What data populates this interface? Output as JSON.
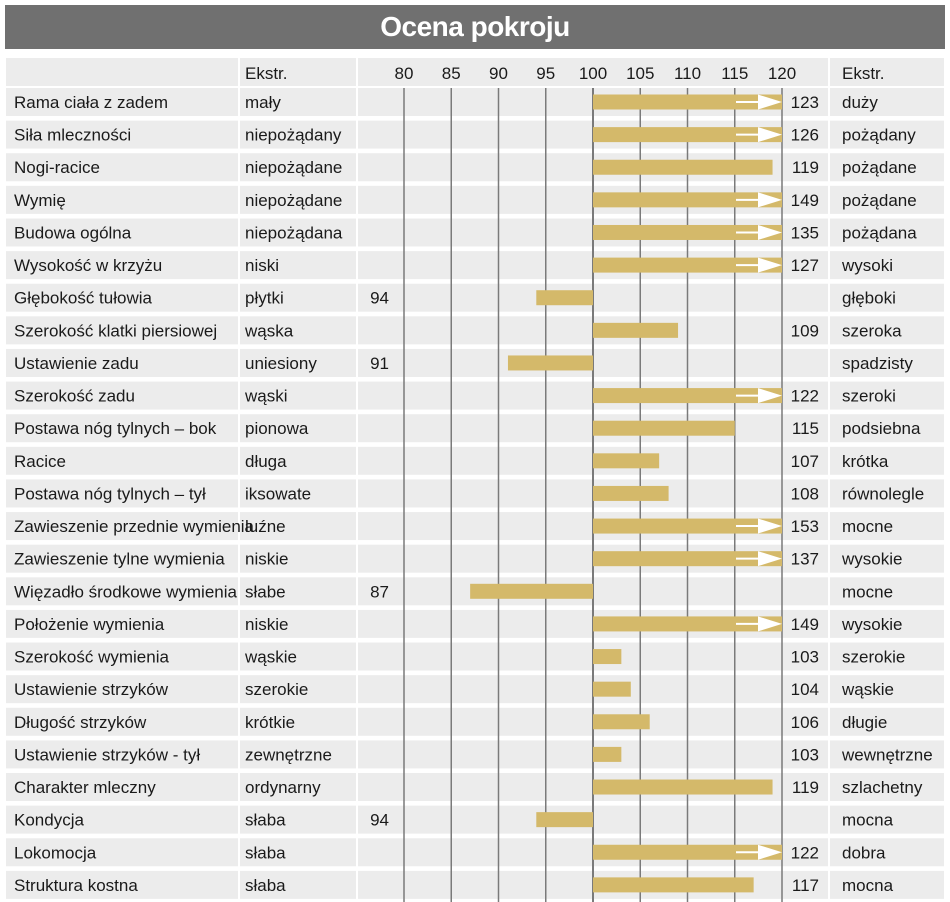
{
  "title": "Ocena pokroju",
  "colors": {
    "bar": "#d4b96a",
    "row_bg": "#ececec",
    "header_bg": "#ececec",
    "title_bg": "#707070",
    "gridline": "#7a7a7a"
  },
  "chart_data": {
    "type": "bar",
    "orientation": "horizontal",
    "baseline": 100,
    "xlim": [
      80,
      120
    ],
    "ticks": [
      80,
      85,
      90,
      95,
      100,
      105,
      110,
      115,
      120
    ],
    "grid": true,
    "header": {
      "left_extreme": "Ekstr.",
      "right_extreme": "Ekstr."
    },
    "arrow_note": "bars exceeding 120 are drawn to the 120 edge with an arrow",
    "rows": [
      {
        "trait": "Rama ciała z zadem",
        "low": "mały",
        "value": 123,
        "high": "duży"
      },
      {
        "trait": "Siła mleczności",
        "low": "niepożądany",
        "value": 126,
        "high": "pożądany"
      },
      {
        "trait": "Nogi-racice",
        "low": "niepożądane",
        "value": 119,
        "high": "pożądane"
      },
      {
        "trait": "Wymię",
        "low": "niepożądane",
        "value": 149,
        "high": "pożądane"
      },
      {
        "trait": "Budowa ogólna",
        "low": "niepożądana",
        "value": 135,
        "high": "pożądana"
      },
      {
        "trait": "Wysokość w krzyżu",
        "low": "niski",
        "value": 127,
        "high": "wysoki"
      },
      {
        "trait": "Głębokość tułowia",
        "low": "płytki",
        "value": 94,
        "high": "głęboki"
      },
      {
        "trait": "Szerokość klatki piersiowej",
        "low": "wąska",
        "value": 109,
        "high": "szeroka"
      },
      {
        "trait": "Ustawienie zadu",
        "low": "uniesiony",
        "value": 91,
        "high": "spadzisty"
      },
      {
        "trait": "Szerokość zadu",
        "low": "wąski",
        "value": 122,
        "high": "szeroki"
      },
      {
        "trait": "Postawa nóg tylnych –  bok",
        "low": "pionowa",
        "value": 115,
        "high": "podsiebna"
      },
      {
        "trait": "Racice",
        "low": "długa",
        "value": 107,
        "high": "krótka"
      },
      {
        "trait": "Postawa nóg tylnych –  tył",
        "low": "iksowate",
        "value": 108,
        "high": "równolegle"
      },
      {
        "trait": "Zawieszenie przednie wymienia",
        "low": "luźne",
        "value": 153,
        "high": "mocne"
      },
      {
        "trait": "Zawieszenie tylne wymienia",
        "low": "niskie",
        "value": 137,
        "high": "wysokie"
      },
      {
        "trait": "Więzadło środkowe wymienia",
        "low": "słabe",
        "value": 87,
        "high": "mocne"
      },
      {
        "trait": "Położenie wymienia",
        "low": "niskie",
        "value": 149,
        "high": "wysokie"
      },
      {
        "trait": "Szerokość wymienia",
        "low": "wąskie",
        "value": 103,
        "high": "szerokie"
      },
      {
        "trait": "Ustawienie strzyków",
        "low": "szerokie",
        "value": 104,
        "high": "wąskie"
      },
      {
        "trait": "Długość strzyków",
        "low": "krótkie",
        "value": 106,
        "high": "długie"
      },
      {
        "trait": "Ustawienie strzyków - tył",
        "low": "zewnętrzne",
        "value": 103,
        "high": "wewnętrzne"
      },
      {
        "trait": "Charakter mleczny",
        "low": "ordynarny",
        "value": 119,
        "high": "szlachetny"
      },
      {
        "trait": "Kondycja",
        "low": "słaba",
        "value": 94,
        "high": "mocna"
      },
      {
        "trait": "Lokomocja",
        "low": "słaba",
        "value": 122,
        "high": "dobra"
      },
      {
        "trait": "Struktura kostna",
        "low": "słaba",
        "value": 117,
        "high": "mocna"
      }
    ]
  }
}
